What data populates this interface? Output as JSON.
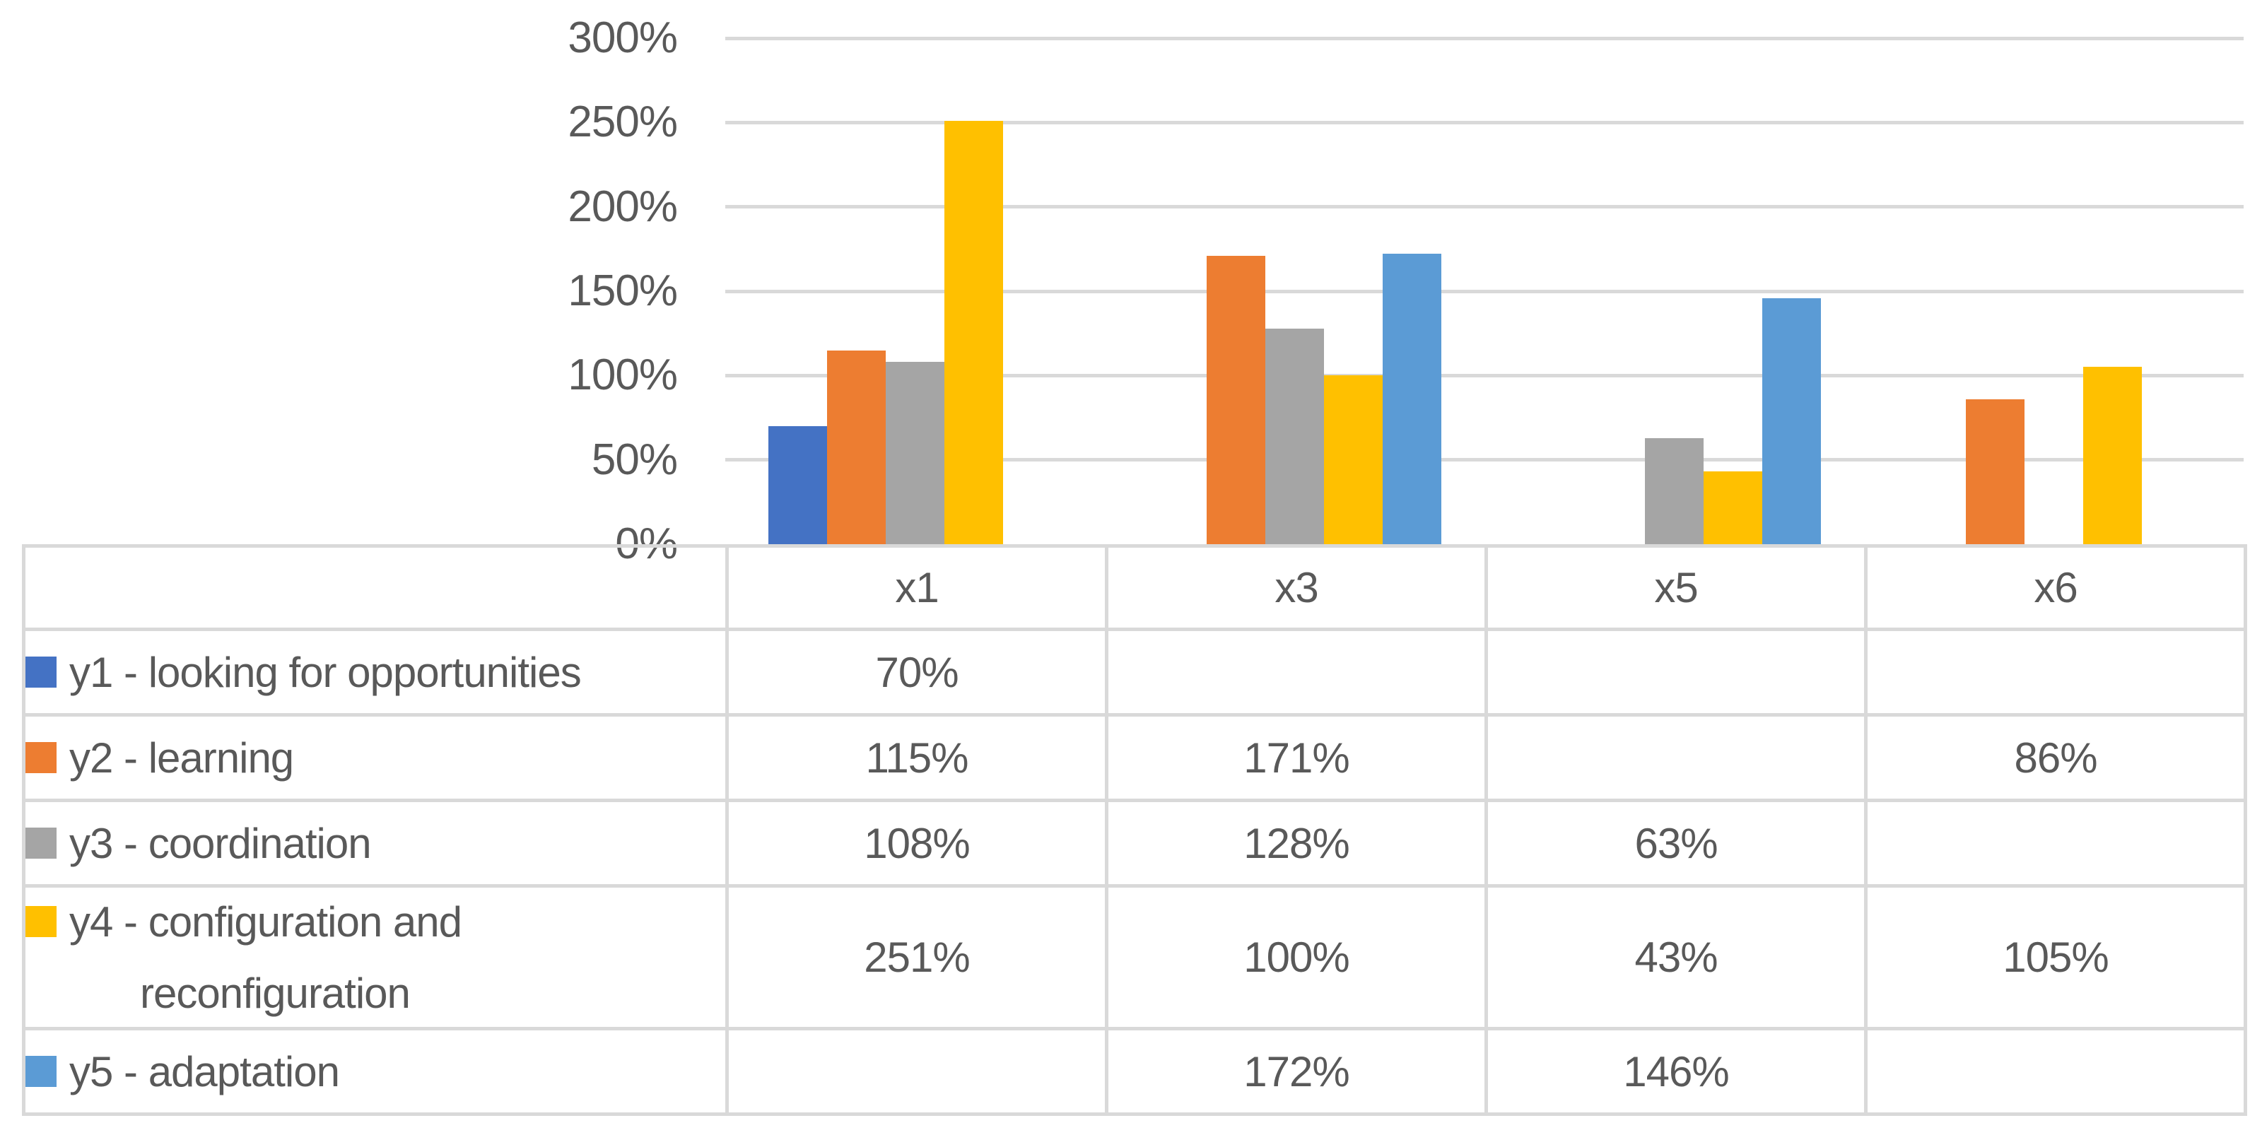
{
  "chart_data": {
    "type": "bar",
    "title": "",
    "categories": [
      "x1",
      "x3",
      "x5",
      "x6"
    ],
    "series": [
      {
        "id": "y1",
        "name": "y1 - looking for opportunities",
        "color": "#4472C4",
        "values": [
          70,
          null,
          null,
          null
        ]
      },
      {
        "id": "y2",
        "name": "y2 - learning",
        "color": "#ED7D31",
        "values": [
          115,
          171,
          null,
          86
        ]
      },
      {
        "id": "y3",
        "name": "y3 - coordination",
        "color": "#A5A5A5",
        "values": [
          108,
          128,
          63,
          null
        ]
      },
      {
        "id": "y4",
        "name": "y4 - configuration and reconfiguration",
        "color": "#FFC000",
        "values": [
          251,
          100,
          43,
          105
        ]
      },
      {
        "id": "y5",
        "name": "y5 - adaptation",
        "color": "#5B9BD5",
        "values": [
          null,
          172,
          146,
          null
        ]
      }
    ],
    "value_format": "percent",
    "ylim": [
      0,
      300
    ],
    "ytick_step": 50,
    "grid": true,
    "legend_position": "data-table-left-column"
  },
  "y_axis": {
    "labels": [
      "300%",
      "250%",
      "200%",
      "150%",
      "100%",
      "50%",
      "0%"
    ]
  },
  "table": {
    "header": [
      "x1",
      "x3",
      "x5",
      "x6"
    ],
    "rows": [
      {
        "swatch_color": "#4472C4",
        "label_line1": "y1 - looking for opportunities",
        "label_line2": "",
        "cells": [
          "70%",
          "",
          "",
          ""
        ]
      },
      {
        "swatch_color": "#ED7D31",
        "label_line1": "y2 - learning",
        "label_line2": "",
        "cells": [
          "115%",
          "171%",
          "",
          "86%"
        ]
      },
      {
        "swatch_color": "#A5A5A5",
        "label_line1": "y3 - coordination",
        "label_line2": "",
        "cells": [
          "108%",
          "128%",
          "63%",
          ""
        ]
      },
      {
        "swatch_color": "#FFC000",
        "label_line1": "y4 - configuration and",
        "label_line2": "reconfiguration",
        "cells": [
          "251%",
          "100%",
          "43%",
          "105%"
        ]
      },
      {
        "swatch_color": "#5B9BD5",
        "label_line1": "y5 - adaptation",
        "label_line2": "",
        "cells": [
          "",
          "172%",
          "146%",
          ""
        ]
      }
    ]
  },
  "colors": {
    "grid": "#D9D9D9",
    "border": "#D9D9D9",
    "text": "#595959",
    "background": "#FFFFFF"
  }
}
